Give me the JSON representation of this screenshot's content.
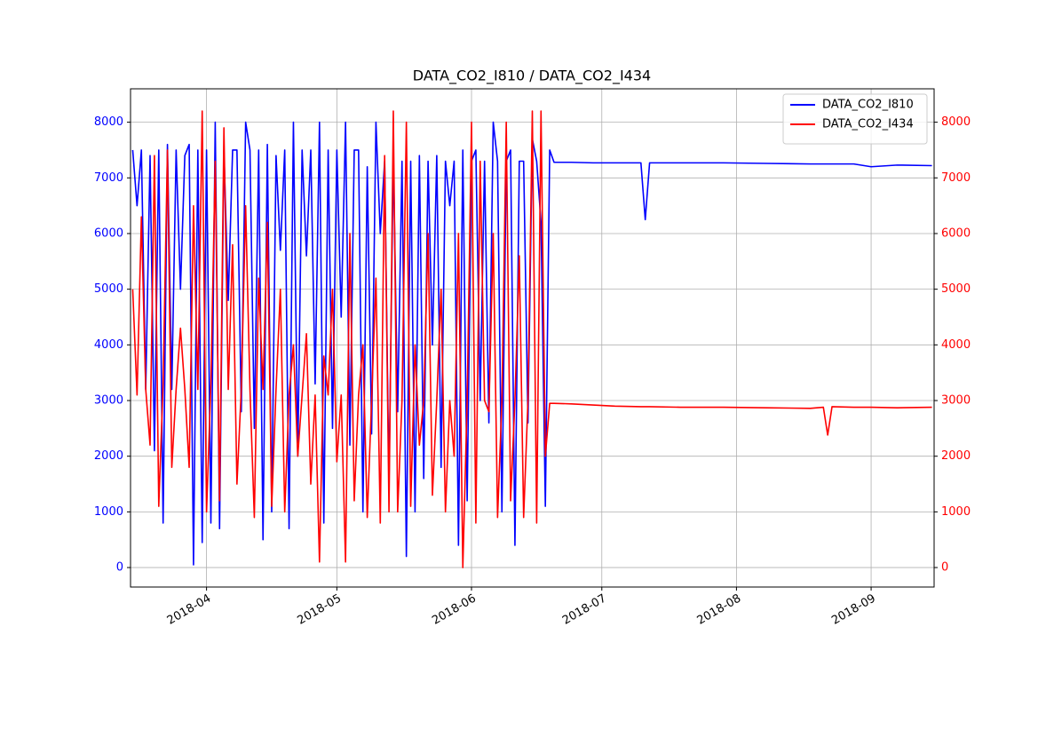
{
  "chart_data": {
    "type": "line",
    "title": "DATA_CO2_I810 / DATA_CO2_I434",
    "x": [
      14,
      15,
      16,
      17,
      18,
      19,
      20,
      21,
      22,
      23,
      24,
      25,
      26,
      27,
      28,
      29,
      30,
      31,
      32,
      33,
      34,
      35,
      36,
      37,
      38,
      39,
      40,
      41,
      42,
      43,
      44,
      45,
      46,
      47,
      48,
      49,
      50,
      51,
      52,
      53,
      54,
      55,
      56,
      57,
      58,
      59,
      60,
      61,
      62,
      63,
      64,
      65,
      66,
      67,
      68,
      69,
      70,
      71,
      72,
      73,
      74,
      75,
      76,
      77,
      78,
      79,
      80,
      81,
      82,
      83,
      84,
      85,
      86,
      87,
      88,
      89,
      90,
      91,
      92,
      93,
      94,
      95,
      96,
      97,
      98,
      99,
      100,
      101,
      102,
      103,
      104,
      105,
      106,
      107,
      108,
      109,
      110,
      111,
      115,
      120,
      125,
      131,
      132,
      133,
      140,
      150,
      160,
      170,
      173,
      174,
      175,
      180,
      184,
      190,
      198
    ],
    "series": [
      {
        "name": "DATA_CO2_I810",
        "color": "#0000ff",
        "axis": "y",
        "values": [
          7500,
          6500,
          7500,
          3200,
          7400,
          2100,
          7500,
          800,
          7600,
          3200,
          7500,
          5000,
          7400,
          7600,
          50,
          7500,
          450,
          7500,
          800,
          8000,
          700,
          7500,
          4800,
          7500,
          7500,
          2800,
          8000,
          7500,
          2500,
          7500,
          500,
          7600,
          1000,
          7400,
          5700,
          7500,
          700,
          8000,
          2000,
          7500,
          5600,
          7500,
          3300,
          8000,
          800,
          7500,
          2500,
          7500,
          4500,
          8000,
          2200,
          7500,
          7500,
          1000,
          7200,
          2400,
          8000,
          6000,
          7300,
          1500,
          7400,
          2800,
          7300,
          200,
          7300,
          1000,
          7400,
          1600,
          7300,
          4000,
          7400,
          1800,
          7300,
          6500,
          7300,
          400,
          7500,
          1200,
          7300,
          7500,
          3000,
          7300,
          2600,
          8000,
          7300,
          1000,
          7300,
          7500,
          400,
          7300,
          7300,
          2600,
          7700,
          7300,
          6200,
          1100,
          7500,
          7280,
          7280,
          7270,
          7270,
          7270,
          6250,
          7270,
          7270,
          7270,
          7260,
          7250,
          7250,
          7250,
          7250,
          7250,
          7200,
          7230,
          7220
        ]
      },
      {
        "name": "DATA_CO2_I434",
        "color": "#ff0000",
        "axis": "y2",
        "values": [
          5000,
          3100,
          6300,
          3200,
          2200,
          7400,
          1100,
          3300,
          7500,
          1800,
          3200,
          4300,
          3200,
          1800,
          6500,
          3200,
          8200,
          1000,
          3300,
          7300,
          1200,
          7900,
          3200,
          5800,
          1500,
          3200,
          6500,
          3200,
          900,
          5200,
          3200,
          6200,
          1100,
          3200,
          5000,
          1000,
          3100,
          4000,
          2000,
          3100,
          4200,
          1500,
          3100,
          100,
          3800,
          3100,
          5000,
          1900,
          3100,
          100,
          6000,
          1200,
          3100,
          4000,
          900,
          3000,
          5200,
          800,
          7400,
          1000,
          8200,
          1000,
          3000,
          8000,
          1100,
          4000,
          2200,
          3000,
          6000,
          1300,
          3000,
          5000,
          1000,
          3000,
          2000,
          6000,
          0,
          3000,
          8000,
          800,
          7300,
          3000,
          2800,
          6000,
          900,
          3000,
          8000,
          1200,
          3000,
          5600,
          900,
          3000,
          8200,
          800,
          8200,
          2000,
          2950,
          2950,
          2940,
          2920,
          2900,
          2890,
          2890,
          2890,
          2880,
          2880,
          2870,
          2860,
          2880,
          2380,
          2890,
          2880,
          2880,
          2870,
          2880
        ]
      }
    ],
    "xlim": [
      13.5,
      198.5
    ],
    "xticks": [
      {
        "value": 31,
        "label": "2018-04"
      },
      {
        "value": 61,
        "label": "2018-05"
      },
      {
        "value": 92,
        "label": "2018-06"
      },
      {
        "value": 122,
        "label": "2018-07"
      },
      {
        "value": 153,
        "label": "2018-08"
      },
      {
        "value": 184,
        "label": "2018-09"
      }
    ],
    "ylim": [
      -350,
      8600
    ],
    "yticks": [
      0,
      1000,
      2000,
      3000,
      4000,
      5000,
      6000,
      7000,
      8000
    ],
    "y2lim": [
      -350,
      8600
    ],
    "y2ticks": [
      0,
      1000,
      2000,
      3000,
      4000,
      5000,
      6000,
      7000,
      8000
    ],
    "grid": true,
    "legend": "upper right"
  }
}
